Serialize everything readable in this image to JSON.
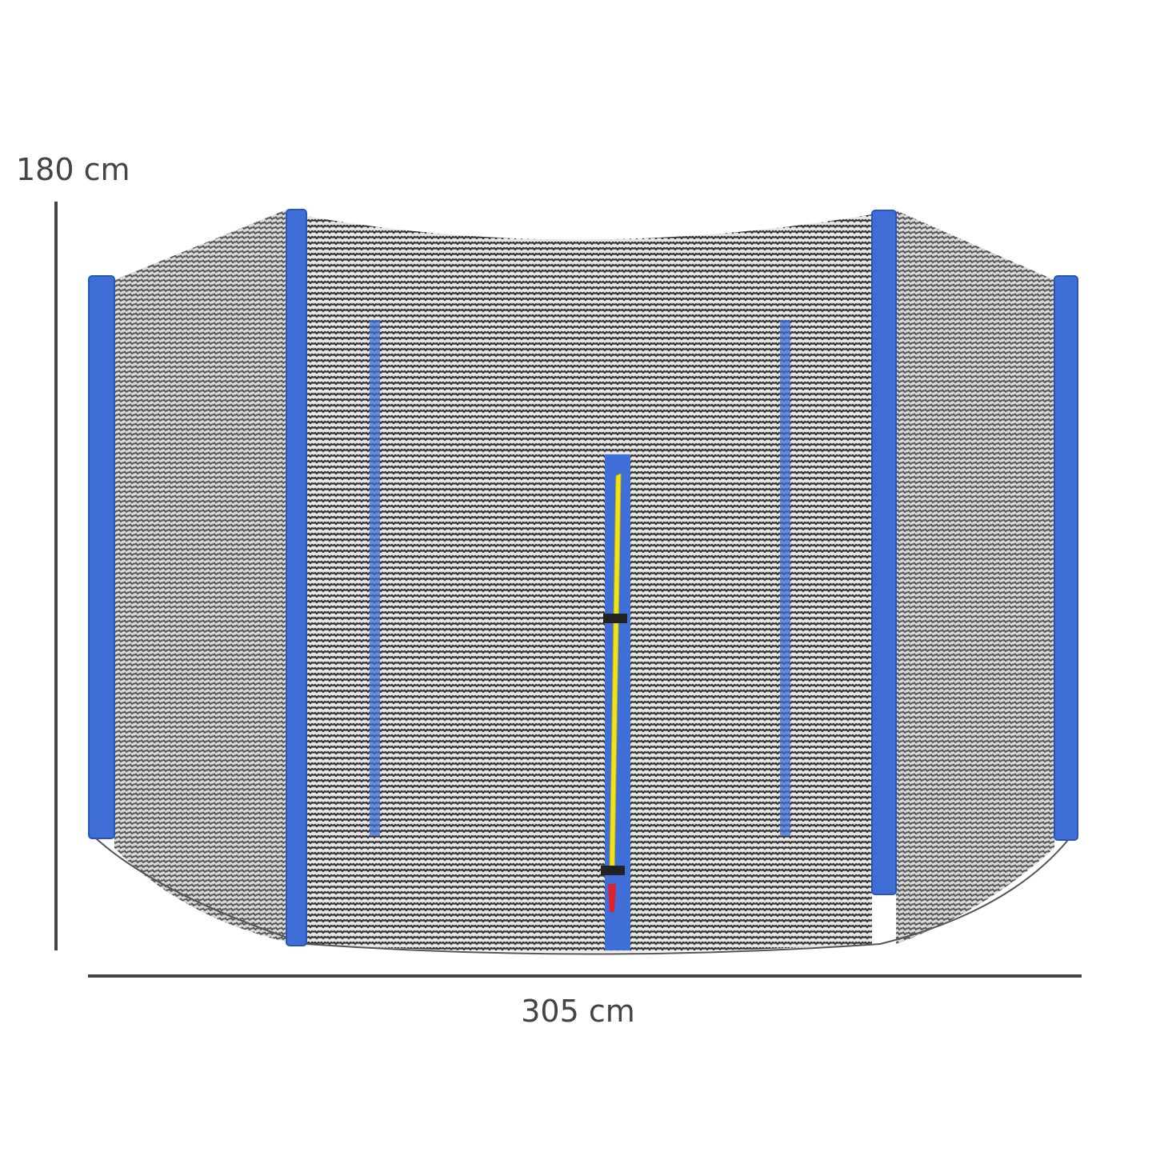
{
  "dimensions": {
    "height_label": "180 cm",
    "width_label": "305 cm"
  },
  "colors": {
    "pole": "#3f6fd6",
    "pole_edge": "#2a55b8",
    "net_dark": "#3a3a3a",
    "zipper_teeth": "#f2e21a",
    "zipper_pull": "#e0202a",
    "dimension_line": "#444444"
  },
  "icons": [
    "trampoline-safety-net-illustration"
  ]
}
